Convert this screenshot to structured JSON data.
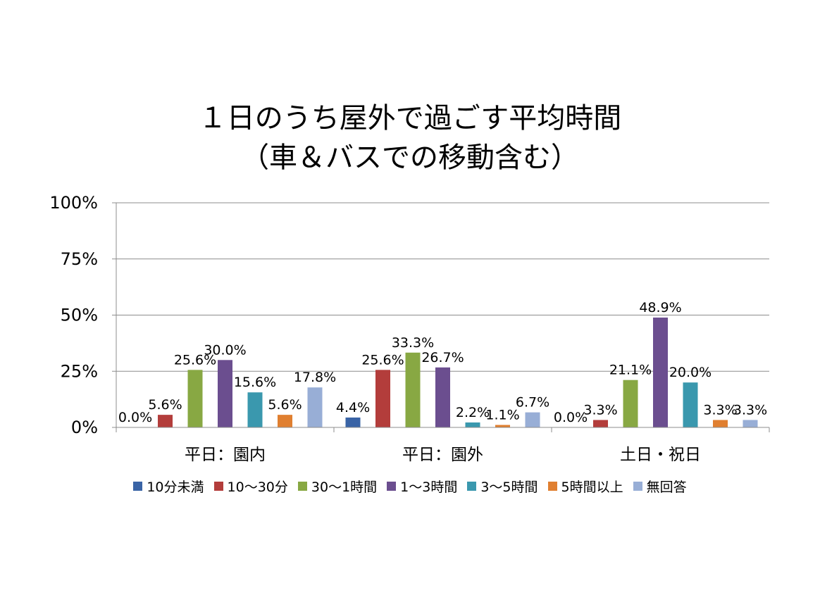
{
  "chart_data": {
    "type": "bar",
    "title": "１日のうち屋外で過ごす平均時間",
    "subtitle": "（車＆バスでの移動含む）",
    "categories": [
      "平日：園内",
      "平日：園外",
      "土日・祝日"
    ],
    "y_ticks": [
      "0%",
      "25%",
      "50%",
      "75%",
      "100%"
    ],
    "ylim": [
      0,
      100
    ],
    "grid": true,
    "legend_position": "bottom",
    "series": [
      {
        "name": "10分未満",
        "color": "#3A64A6",
        "values": [
          0.0,
          4.4,
          0.0
        ],
        "labels": [
          "0.0%",
          "4.4%",
          "0.0%"
        ]
      },
      {
        "name": "10〜30分",
        "color": "#B33D3B",
        "values": [
          5.6,
          25.6,
          3.3
        ],
        "labels": [
          "5.6%",
          "25.6%",
          "3.3%"
        ]
      },
      {
        "name": "30〜1時間",
        "color": "#88A843",
        "values": [
          25.6,
          33.3,
          21.1
        ],
        "labels": [
          "25.6%",
          "33.3%",
          "21.1%"
        ]
      },
      {
        "name": "1〜3時間",
        "color": "#6B4E8F",
        "values": [
          30.0,
          26.7,
          48.9
        ],
        "labels": [
          "30.0%",
          "26.7%",
          "48.9%"
        ]
      },
      {
        "name": "3〜5時間",
        "color": "#3A98AE",
        "values": [
          15.6,
          2.2,
          20.0
        ],
        "labels": [
          "15.6%",
          "2.2%",
          "20.0%"
        ]
      },
      {
        "name": "5時間以上",
        "color": "#E07F30",
        "values": [
          5.6,
          1.1,
          3.3
        ],
        "labels": [
          "5.6%",
          "1.1%",
          "3.3%"
        ]
      },
      {
        "name": "無回答",
        "color": "#98AED6",
        "values": [
          17.8,
          6.7,
          3.3
        ],
        "labels": [
          "17.8%",
          "6.7%",
          "3.3%"
        ]
      }
    ]
  }
}
